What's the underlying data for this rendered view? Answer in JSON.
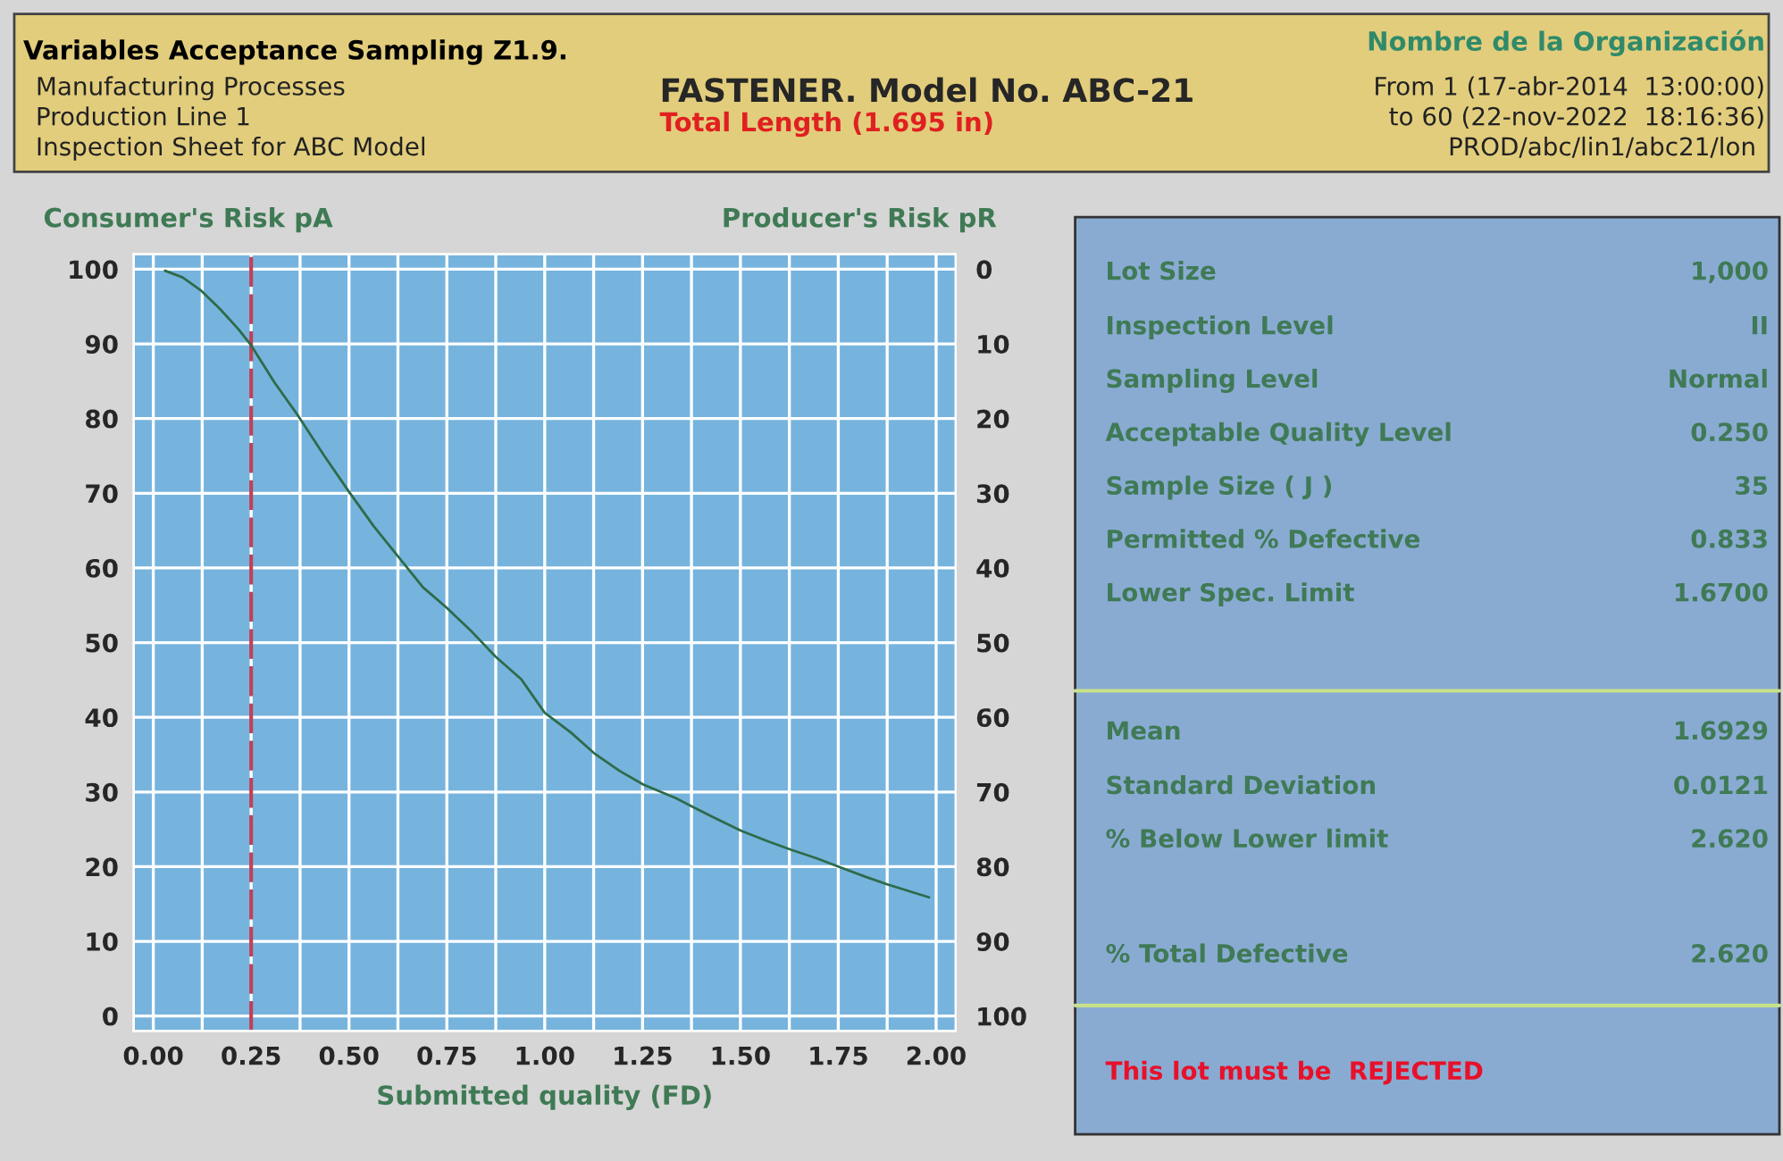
{
  "chart_data": {
    "type": "line",
    "title": "FASTENER. Model No. ABC-21",
    "subtitle": "Total Length (1.695 in)",
    "xlabel": "Submitted quality (FD)",
    "ylabel": "Consumer's Risk pA",
    "y2label": "Producer's Risk pR",
    "x": [
      0.03,
      0.075,
      0.123,
      0.17,
      0.217,
      0.25,
      0.31,
      0.371,
      0.437,
      0.5,
      0.563,
      0.626,
      0.689,
      0.749,
      0.815,
      0.875,
      0.94,
      1.0,
      1.066,
      1.126,
      1.192,
      1.252,
      1.334,
      1.375,
      1.428,
      1.502,
      1.57,
      1.628,
      1.696,
      1.751,
      1.822,
      1.877,
      1.932,
      1.982
    ],
    "series": [
      {
        "color": "#2e6b4a",
        "values": [
          99.8,
          98.9,
          97.1,
          94.7,
          92,
          89.8,
          84.8,
          80.3,
          75,
          70.2,
          65.6,
          61.5,
          57.4,
          54.7,
          51.4,
          48.1,
          45.1,
          40.6,
          38,
          35.2,
          32.8,
          31,
          29.2,
          28.1,
          26.7,
          24.8,
          23.4,
          22.3,
          21.1,
          20,
          18.6,
          17.6,
          16.7,
          15.9
        ]
      }
    ],
    "xlim": [
      -0.05,
      2.05
    ],
    "xticks": [
      "0.00",
      {
        "value": 0.125,
        "label": null
      },
      {
        "value": 0.25,
        "label": "0.25"
      },
      {
        "value": 0.375,
        "label": null
      },
      {
        "value": 0.5,
        "label": "0.50"
      },
      {
        "value": 0.625,
        "label": null
      },
      {
        "value": 0.75,
        "label": "0.75"
      },
      {
        "value": 0.875,
        "label": null
      },
      {
        "value": 1.0,
        "label": "1.00"
      },
      {
        "value": 1.125,
        "label": null
      },
      {
        "value": 1.25,
        "label": "1.25"
      },
      {
        "value": 1.375,
        "label": null
      },
      {
        "value": 1.5,
        "label": "1.50"
      },
      {
        "value": 1.625,
        "label": null
      },
      {
        "value": 1.75,
        "label": "1.75"
      },
      {
        "value": 1.875,
        "label": null
      },
      {
        "value": 2.0,
        "label": "2.00"
      }
    ],
    "ylim": [
      -2,
      102
    ],
    "yticks": [
      0,
      10,
      20,
      30,
      40,
      50,
      60,
      70,
      80,
      90,
      100
    ],
    "y2lim": [
      102,
      -2
    ],
    "y2ticks": [
      0,
      10,
      20,
      30,
      40,
      50,
      60,
      70,
      80,
      90,
      100
    ],
    "grid": true,
    "line_style": "solid",
    "marker": "none",
    "ref_lines": [
      {
        "axis": "x",
        "value": 0.25,
        "color": "#c0405a",
        "line_style": "dashed"
      }
    ],
    "annotations": [
      "Variables Acceptance Sampling Z1.9.",
      "Manufacturing Processes",
      "Production Line 1",
      "Inspection Sheet for ABC Model",
      "Nombre de la Organización",
      "From 1 (17-abr-2014  13:00:00)",
      "to 60 (22-nov-2022  18:16:36)",
      "PROD/abc/lin1/abc21/lon",
      "Lot Size",
      "1,000",
      "Inspection Level",
      "II",
      "Sampling Level",
      "Normal",
      "Acceptable Quality Level",
      "0.250",
      "Sample Size ( J )",
      "35",
      "Permitted % Defective",
      "0.833",
      "Lower Spec. Limit",
      "1.6700",
      "Mean",
      "1.6929",
      "Standard Deviation",
      "0.0121",
      "% Below Lower limit",
      "2.620",
      "% Total Defective",
      "2.620",
      "This lot must be  REJECTED"
    ]
  }
}
